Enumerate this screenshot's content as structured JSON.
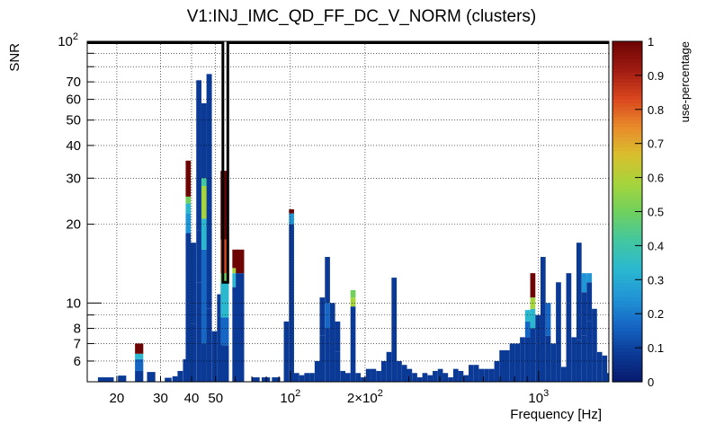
{
  "chart_data": {
    "type": "heatmap",
    "title": "V1:INJ_IMC_QD_FF_DC_V_NORM (clusters)",
    "xlabel": "Frequency [Hz]",
    "ylabel": "SNR",
    "zlabel": "use-percentage",
    "x_scale": "log",
    "y_scale": "log",
    "xlim": [
      15.2,
      1920
    ],
    "ylim": [
      5.0,
      100
    ],
    "zlim": [
      0,
      1
    ],
    "x_ticks": [
      {
        "value": 20,
        "label": "20"
      },
      {
        "value": 30,
        "label": "30"
      },
      {
        "value": 40,
        "label": "40"
      },
      {
        "value": 50,
        "label": "50"
      },
      {
        "value": 100,
        "label": "10",
        "exp": "2"
      },
      {
        "value": 200,
        "label": "2×10",
        "exp": "2"
      },
      {
        "value": 1000,
        "label": "10",
        "exp": "3"
      }
    ],
    "y_ticks": [
      {
        "value": 6,
        "label": "6"
      },
      {
        "value": 7,
        "label": "7"
      },
      {
        "value": 8,
        "label": "8"
      },
      {
        "value": 10,
        "label": "10"
      },
      {
        "value": 20,
        "label": "20"
      },
      {
        "value": 30,
        "label": "30"
      },
      {
        "value": 40,
        "label": "40"
      },
      {
        "value": 50,
        "label": "50"
      },
      {
        "value": 60,
        "label": "60"
      },
      {
        "value": 70,
        "label": "70"
      },
      {
        "value": 100,
        "label": "10",
        "exp": "2"
      }
    ],
    "z_ticks": [
      "0",
      "0.1",
      "0.2",
      "0.3",
      "0.4",
      "0.5",
      "0.6",
      "0.7",
      "0.8",
      "0.9",
      "1"
    ],
    "grid": true,
    "colormap": [
      "#08196b",
      "#0b3a96",
      "#1666c4",
      "#2196d6",
      "#2bb8cf",
      "#43c7a0",
      "#6fd05e",
      "#a6d43c",
      "#d8c02e",
      "#e88a2a",
      "#d9461f",
      "#a01b12",
      "#6e0505"
    ],
    "columns": [
      {
        "x": 17.4,
        "segments": [
          [
            5.0,
            5.2,
            0.05
          ]
        ]
      },
      {
        "x": 18.7,
        "segments": [
          [
            5.0,
            5.2,
            0.05
          ]
        ]
      },
      {
        "x": 21.0,
        "segments": [
          [
            5.0,
            5.28,
            0.05
          ]
        ]
      },
      {
        "x": 24.6,
        "segments": [
          [
            5.0,
            5.5,
            0.08
          ],
          [
            5.5,
            6.1,
            0.2
          ],
          [
            6.1,
            6.4,
            0.3
          ],
          [
            6.4,
            7.0,
            0.97
          ]
        ]
      },
      {
        "x": 27.5,
        "segments": [
          [
            5.0,
            5.45,
            0.05
          ]
        ]
      },
      {
        "x": 32.2,
        "segments": [
          [
            5.0,
            5.18,
            0.05
          ]
        ]
      },
      {
        "x": 34.3,
        "segments": [
          [
            5.0,
            5.25,
            0.06
          ]
        ]
      },
      {
        "x": 36.0,
        "segments": [
          [
            5.0,
            5.5,
            0.08
          ]
        ]
      },
      {
        "x": 37.8,
        "segments": [
          [
            5.0,
            6.1,
            0.08
          ]
        ]
      },
      {
        "x": 38.8,
        "segments": [
          [
            5.0,
            10.0,
            0.05
          ],
          [
            10.0,
            18.5,
            0.1
          ],
          [
            18.5,
            22.0,
            0.25
          ],
          [
            22.0,
            24.0,
            0.35
          ],
          [
            24.0,
            25.5,
            0.5
          ],
          [
            25.5,
            35.0,
            0.97
          ]
        ]
      },
      {
        "x": 40.7,
        "segments": [
          [
            5.0,
            8.3,
            0.06
          ],
          [
            8.3,
            17.0,
            0.12
          ]
        ]
      },
      {
        "x": 42.8,
        "segments": [
          [
            5.0,
            12.0,
            0.06
          ],
          [
            12.0,
            19.0,
            0.12
          ],
          [
            19.0,
            71.0,
            0.06
          ]
        ]
      },
      {
        "x": 44.9,
        "segments": [
          [
            5.0,
            7.0,
            0.08
          ],
          [
            7.0,
            16.0,
            0.16
          ],
          [
            16.0,
            21.0,
            0.3
          ],
          [
            21.0,
            28.0,
            0.55
          ],
          [
            28.0,
            30.0,
            0.4
          ],
          [
            30.0,
            58.0,
            0.08
          ]
        ]
      },
      {
        "x": 47.1,
        "segments": [
          [
            5.0,
            9.5,
            0.08
          ],
          [
            9.5,
            23.0,
            0.12
          ],
          [
            23.0,
            75.0,
            0.06
          ]
        ]
      },
      {
        "x": 49.5,
        "segments": [
          [
            5.0,
            7.8,
            0.05
          ]
        ]
      },
      {
        "x": 51.9,
        "segments": [
          [
            5.0,
            9.0,
            0.06
          ],
          [
            9.0,
            10.8,
            0.1
          ]
        ]
      },
      {
        "x": 54.4,
        "segments": [
          [
            5.0,
            6.9,
            0.1
          ],
          [
            6.9,
            8.8,
            0.15
          ],
          [
            8.8,
            12.0,
            0.3
          ],
          [
            12.0,
            13.0,
            0.5
          ],
          [
            13.0,
            17.5,
            0.8
          ],
          [
            17.5,
            32.0,
            0.97
          ]
        ]
      },
      {
        "x": 59.8,
        "segments": [
          [
            5.0,
            11.5,
            0.06
          ],
          [
            11.5,
            13.0,
            0.3
          ],
          [
            13.0,
            13.6,
            0.58
          ],
          [
            13.6,
            16.0,
            0.97
          ]
        ]
      },
      {
        "x": 62.7,
        "segments": [
          [
            5.0,
            13.0,
            0.08
          ],
          [
            13.0,
            16.0,
            0.97
          ]
        ]
      },
      {
        "x": 72.4,
        "segments": [
          [
            5.0,
            5.2,
            0.05
          ]
        ]
      },
      {
        "x": 79.7,
        "segments": [
          [
            5.0,
            5.2,
            0.05
          ]
        ]
      },
      {
        "x": 87.6,
        "segments": [
          [
            5.0,
            5.2,
            0.05
          ]
        ]
      },
      {
        "x": 96.4,
        "segments": [
          [
            5.0,
            8.5,
            0.07
          ]
        ]
      },
      {
        "x": 101.1,
        "segments": [
          [
            5.0,
            20.0,
            0.1
          ],
          [
            20.0,
            22.0,
            0.25
          ],
          [
            22.0,
            22.8,
            0.97
          ]
        ]
      },
      {
        "x": 106.0,
        "segments": [
          [
            5.0,
            5.4,
            0.05
          ]
        ]
      },
      {
        "x": 111.2,
        "segments": [
          [
            5.0,
            5.3,
            0.05
          ]
        ]
      },
      {
        "x": 116.6,
        "segments": [
          [
            5.0,
            5.4,
            0.05
          ]
        ]
      },
      {
        "x": 122.3,
        "segments": [
          [
            5.0,
            5.4,
            0.05
          ]
        ]
      },
      {
        "x": 128.3,
        "segments": [
          [
            5.0,
            6.0,
            0.05
          ]
        ]
      },
      {
        "x": 134.5,
        "segments": [
          [
            5.0,
            7.5,
            0.07
          ],
          [
            7.5,
            10.5,
            0.12
          ]
        ]
      },
      {
        "x": 141.1,
        "segments": [
          [
            5.0,
            8.0,
            0.06
          ],
          [
            8.0,
            10.0,
            0.15
          ],
          [
            10.0,
            15.0,
            0.1
          ]
        ]
      },
      {
        "x": 147.9,
        "segments": [
          [
            5.0,
            7.0,
            0.06
          ],
          [
            7.0,
            10.0,
            0.12
          ]
        ]
      },
      {
        "x": 155.1,
        "segments": [
          [
            5.0,
            6.5,
            0.06
          ],
          [
            6.5,
            8.5,
            0.1
          ]
        ]
      },
      {
        "x": 162.7,
        "segments": [
          [
            5.0,
            5.5,
            0.05
          ]
        ]
      },
      {
        "x": 170.6,
        "segments": [
          [
            5.0,
            5.4,
            0.05
          ]
        ]
      },
      {
        "x": 178.9,
        "segments": [
          [
            5.0,
            9.7,
            0.12
          ],
          [
            9.7,
            10.5,
            0.58
          ],
          [
            10.5,
            11.2,
            0.5
          ]
        ]
      },
      {
        "x": 187.6,
        "segments": [
          [
            5.0,
            5.4,
            0.05
          ]
        ]
      },
      {
        "x": 196.8,
        "segments": [
          [
            5.0,
            5.2,
            0.05
          ]
        ]
      },
      {
        "x": 206.4,
        "segments": [
          [
            5.0,
            5.6,
            0.05
          ]
        ]
      },
      {
        "x": 216.5,
        "segments": [
          [
            5.0,
            5.6,
            0.05
          ]
        ]
      },
      {
        "x": 227.0,
        "segments": [
          [
            5.0,
            5.5,
            0.05
          ]
        ]
      },
      {
        "x": 238.1,
        "segments": [
          [
            5.0,
            6.0,
            0.05
          ]
        ]
      },
      {
        "x": 249.7,
        "segments": [
          [
            5.0,
            6.5,
            0.05
          ]
        ]
      },
      {
        "x": 261.9,
        "segments": [
          [
            5.0,
            12.5,
            0.06
          ]
        ]
      },
      {
        "x": 274.7,
        "segments": [
          [
            5.0,
            6.0,
            0.05
          ]
        ]
      },
      {
        "x": 288.1,
        "segments": [
          [
            5.0,
            5.8,
            0.05
          ]
        ]
      },
      {
        "x": 302.1,
        "segments": [
          [
            5.0,
            5.6,
            0.05
          ]
        ]
      },
      {
        "x": 316.9,
        "segments": [
          [
            5.0,
            5.4,
            0.05
          ]
        ]
      },
      {
        "x": 332.3,
        "segments": [
          [
            5.0,
            5.2,
            0.05
          ]
        ]
      },
      {
        "x": 348.5,
        "segments": [
          [
            5.0,
            5.4,
            0.05
          ]
        ]
      },
      {
        "x": 365.5,
        "segments": [
          [
            5.0,
            5.3,
            0.05
          ]
        ]
      },
      {
        "x": 383.4,
        "segments": [
          [
            5.0,
            5.5,
            0.05
          ]
        ]
      },
      {
        "x": 402.1,
        "segments": [
          [
            5.0,
            5.6,
            0.05
          ]
        ]
      },
      {
        "x": 421.7,
        "segments": [
          [
            5.0,
            5.4,
            0.05
          ]
        ]
      },
      {
        "x": 442.3,
        "segments": [
          [
            5.0,
            5.2,
            0.05
          ]
        ]
      },
      {
        "x": 463.9,
        "segments": [
          [
            5.0,
            5.6,
            0.05
          ]
        ]
      },
      {
        "x": 486.5,
        "segments": [
          [
            5.0,
            5.5,
            0.05
          ]
        ]
      },
      {
        "x": 510.3,
        "segments": [
          [
            5.0,
            5.3,
            0.05
          ]
        ]
      },
      {
        "x": 535.2,
        "segments": [
          [
            5.0,
            5.8,
            0.05
          ]
        ]
      },
      {
        "x": 561.3,
        "segments": [
          [
            5.0,
            5.8,
            0.05
          ]
        ]
      },
      {
        "x": 588.6,
        "segments": [
          [
            5.0,
            5.6,
            0.05
          ]
        ]
      },
      {
        "x": 617.4,
        "segments": [
          [
            5.0,
            5.6,
            0.05
          ]
        ]
      },
      {
        "x": 647.5,
        "segments": [
          [
            5.0,
            5.6,
            0.05
          ]
        ]
      },
      {
        "x": 679.1,
        "segments": [
          [
            5.0,
            6.0,
            0.05
          ]
        ]
      },
      {
        "x": 712.2,
        "segments": [
          [
            5.0,
            6.6,
            0.05
          ]
        ]
      },
      {
        "x": 747.0,
        "segments": [
          [
            5.0,
            6.6,
            0.05
          ]
        ]
      },
      {
        "x": 783.4,
        "segments": [
          [
            5.0,
            7.0,
            0.06
          ]
        ]
      },
      {
        "x": 821.6,
        "segments": [
          [
            5.0,
            7.0,
            0.07
          ]
        ]
      },
      {
        "x": 861.7,
        "segments": [
          [
            5.0,
            7.4,
            0.08
          ]
        ]
      },
      {
        "x": 903.8,
        "segments": [
          [
            5.0,
            7.4,
            0.08
          ],
          [
            7.4,
            8.5,
            0.2
          ],
          [
            8.5,
            9.4,
            0.35
          ]
        ]
      },
      {
        "x": 947.9,
        "segments": [
          [
            5.0,
            8.0,
            0.08
          ],
          [
            8.0,
            9.5,
            0.3
          ],
          [
            9.5,
            10.5,
            0.58
          ],
          [
            10.5,
            13.0,
            0.97
          ]
        ]
      },
      {
        "x": 994.2,
        "segments": [
          [
            5.0,
            7.0,
            0.06
          ],
          [
            7.0,
            9.0,
            0.12
          ]
        ]
      },
      {
        "x": 1042.7,
        "segments": [
          [
            5.0,
            8.0,
            0.08
          ],
          [
            8.0,
            15.0,
            0.12
          ]
        ]
      },
      {
        "x": 1093.6,
        "segments": [
          [
            5.0,
            7.5,
            0.1
          ],
          [
            7.5,
            10.0,
            0.2
          ]
        ]
      },
      {
        "x": 1147.0,
        "segments": [
          [
            5.0,
            6.0,
            0.08
          ],
          [
            6.0,
            7.0,
            0.1
          ]
        ]
      },
      {
        "x": 1203.0,
        "segments": [
          [
            5.0,
            10.0,
            0.06
          ],
          [
            10.0,
            12.0,
            0.12
          ]
        ]
      },
      {
        "x": 1261.7,
        "segments": [
          [
            5.0,
            5.7,
            0.05
          ]
        ]
      },
      {
        "x": 1323.3,
        "segments": [
          [
            5.0,
            7.0,
            0.06
          ],
          [
            7.0,
            10.0,
            0.12
          ],
          [
            10.0,
            13.0,
            0.06
          ]
        ]
      },
      {
        "x": 1387.9,
        "segments": [
          [
            5.0,
            7.4,
            0.06
          ]
        ]
      },
      {
        "x": 1455.6,
        "segments": [
          [
            5.0,
            7.2,
            0.06
          ],
          [
            7.2,
            9.0,
            0.1
          ],
          [
            9.0,
            17.0,
            0.12
          ]
        ]
      },
      {
        "x": 1526.7,
        "segments": [
          [
            5.0,
            7.5,
            0.06
          ],
          [
            7.5,
            11.0,
            0.12
          ],
          [
            11.0,
            13.0,
            0.25
          ]
        ]
      },
      {
        "x": 1601.2,
        "segments": [
          [
            5.0,
            8.5,
            0.08
          ],
          [
            8.5,
            12.0,
            0.12
          ],
          [
            12.0,
            13.0,
            0.25
          ]
        ]
      },
      {
        "x": 1679.4,
        "segments": [
          [
            5.0,
            9.5,
            0.06
          ]
        ]
      },
      {
        "x": 1761.4,
        "segments": [
          [
            5.0,
            6.5,
            0.06
          ]
        ]
      },
      {
        "x": 1847.4,
        "segments": [
          [
            5.0,
            6.3,
            0.06
          ]
        ]
      },
      {
        "x": 1900.0,
        "segments": [
          [
            5.0,
            5.4,
            0.05
          ]
        ]
      }
    ],
    "selection_boxes": [
      {
        "x0": 15.2,
        "x1": 53.5,
        "y0": 100,
        "y1": 100
      },
      {
        "x0": 53.5,
        "x1": 56.0,
        "y0": 12.0,
        "y1": 100
      }
    ]
  }
}
